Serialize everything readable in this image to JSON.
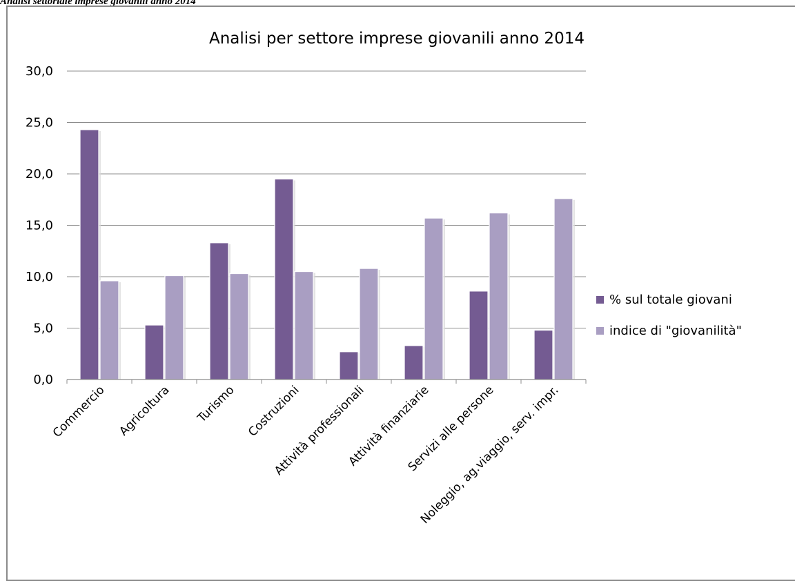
{
  "caption": "Analisi settoriale imprese giovanili anno 2014",
  "chart_data": {
    "type": "bar",
    "title": "Analisi per settore imprese giovanili anno 2014",
    "xlabel": "",
    "ylabel": "",
    "ylim": [
      0,
      30
    ],
    "yticks": [
      "0,0",
      "5,0",
      "10,0",
      "15,0",
      "20,0",
      "25,0",
      "30,0"
    ],
    "grid": true,
    "legend_position": "right",
    "categories": [
      "Commercio",
      "Agricoltura",
      "Turismo",
      "Costruzioni",
      "Attività professionali",
      "Attività finanziarie",
      "Servizi alle persone",
      "Noleggio, ag.viaggio, serv. impr."
    ],
    "series": [
      {
        "name": "% sul totale giovani",
        "color": "#745b92",
        "values": [
          24.3,
          5.3,
          13.3,
          19.5,
          2.7,
          3.3,
          8.6,
          4.8
        ]
      },
      {
        "name": "indice di \"giovanilità\"",
        "color": "#a99ec2",
        "values": [
          9.6,
          10.1,
          10.3,
          10.5,
          10.8,
          15.7,
          16.2,
          17.6
        ]
      }
    ]
  }
}
